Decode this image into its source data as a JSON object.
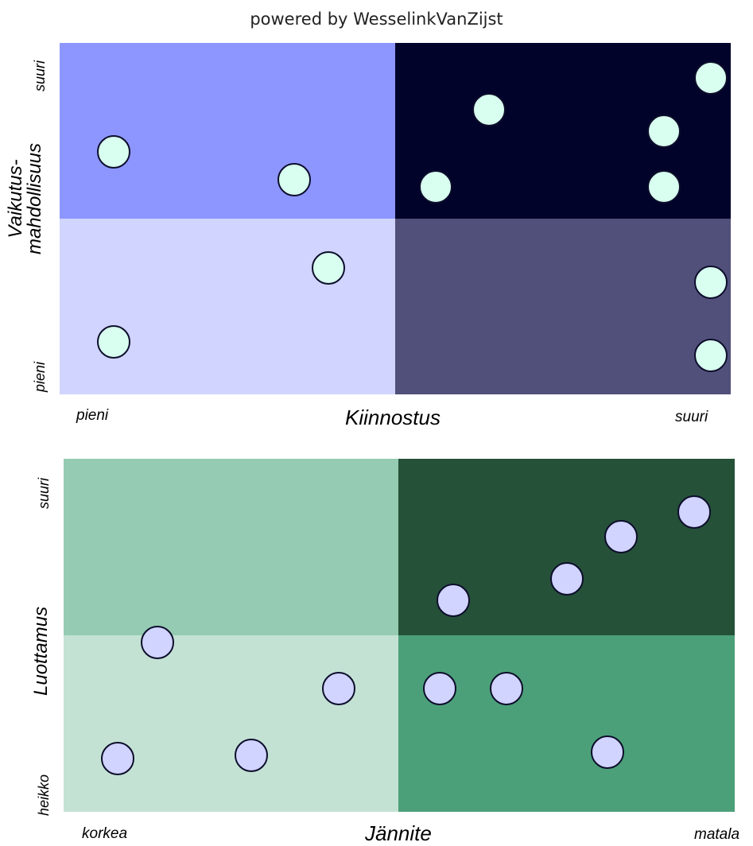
{
  "header": {
    "text": "powered by WesselinkVanZijst"
  },
  "matrix1": {
    "colors": {
      "tl": "#8c96fe",
      "tr": "#01032a",
      "bl": "#d0d4fe",
      "br": "#51507b",
      "dot_fill": "#d8fff0"
    },
    "y_title_line1": "Vaikutus-",
    "y_title_line2": "mahdollisuus",
    "y_high": "suuri",
    "y_low": "pieni",
    "x_title": "Kiinnostus",
    "x_low": "pieni",
    "x_high": "suuri"
  },
  "matrix2": {
    "colors": {
      "tl": "#94cbb2",
      "tr": "#255139",
      "bl": "#c3e2d4",
      "br": "#4ca079",
      "dot_fill": "#d0d4fe"
    },
    "y_title": "Luottamus",
    "y_high": "suuri",
    "y_low": "heikko",
    "x_title": "Jännite",
    "x_low": "korkea",
    "x_high": "matala"
  },
  "chart_data": [
    {
      "type": "scatter",
      "xlabel": "Kiinnostus",
      "ylabel": "Vaikutus-mahdollisuus",
      "xlim": [
        0,
        1
      ],
      "ylim": [
        0,
        1
      ],
      "x": [
        0.08,
        0.35,
        0.4,
        0.08,
        0.56,
        0.64,
        0.9,
        0.97,
        0.9,
        0.97,
        0.97
      ],
      "y": [
        0.69,
        0.61,
        0.36,
        0.15,
        0.59,
        0.81,
        0.75,
        0.9,
        0.59,
        0.32,
        0.11
      ]
    },
    {
      "type": "scatter",
      "xlabel": "Jännite",
      "ylabel": "Luottamus",
      "xlim": [
        0,
        1
      ],
      "ylim": [
        0,
        1
      ],
      "x": [
        0.14,
        0.41,
        0.28,
        0.08,
        0.58,
        0.75,
        0.83,
        0.94,
        0.56,
        0.66,
        0.81
      ],
      "y": [
        0.48,
        0.35,
        0.16,
        0.15,
        0.6,
        0.66,
        0.78,
        0.85,
        0.35,
        0.35,
        0.17
      ]
    }
  ]
}
